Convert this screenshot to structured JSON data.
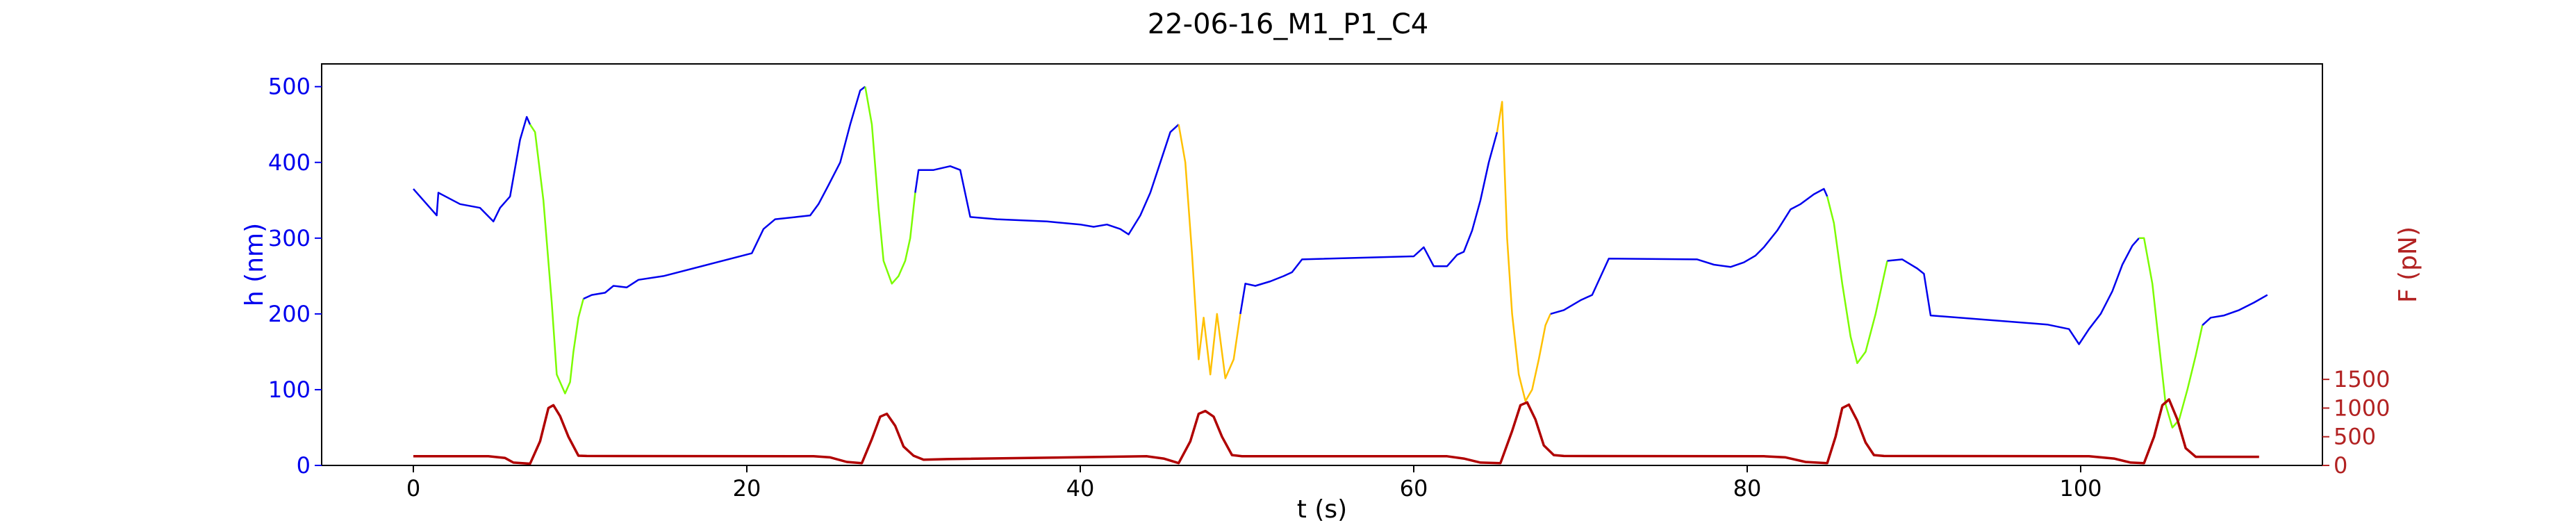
{
  "chart_data": {
    "type": "line",
    "title": "22-06-16_M1_P1_C4",
    "xlabel": "t (s)",
    "ylabel_left": "h (nm)",
    "ylabel_right": "F (pN)",
    "xlim": [
      -5.5,
      114.5
    ],
    "ylim_left": [
      0,
      530
    ],
    "ylim_right": [
      0,
      7000
    ],
    "x_ticks": [
      0,
      20,
      40,
      60,
      80,
      100
    ],
    "y_ticks_left": [
      0,
      100,
      200,
      300,
      400,
      500
    ],
    "y_ticks_right": [
      0,
      500,
      1000,
      1500
    ],
    "grid": false,
    "legend": "none",
    "colors": {
      "height_trace": "#0000ee",
      "ramp_green": "#7cfc00",
      "ramp_yellow": "#ffc000",
      "force_trace": "#b00000",
      "axis_left": "#0000ee",
      "axis_right": "#b22222",
      "frame": "#000000"
    },
    "series": [
      {
        "axis": "left",
        "segments": [
          {
            "color": "blue",
            "points": [
              [
                0,
                365
              ],
              [
                1.4,
                330
              ],
              [
                1.5,
                360
              ],
              [
                2.8,
                345
              ],
              [
                4,
                340
              ],
              [
                4.8,
                322
              ],
              [
                5.2,
                340
              ],
              [
                5.8,
                355
              ],
              [
                6.4,
                430
              ],
              [
                6.8,
                460
              ],
              [
                7.0,
                450
              ]
            ]
          },
          {
            "color": "green",
            "points": [
              [
                7.0,
                450
              ],
              [
                7.3,
                440
              ],
              [
                7.8,
                350
              ],
              [
                8.3,
                215
              ],
              [
                8.6,
                120
              ],
              [
                9.1,
                95
              ],
              [
                9.4,
                110
              ],
              [
                9.6,
                150
              ],
              [
                9.9,
                195
              ],
              [
                10.2,
                220
              ]
            ]
          },
          {
            "color": "blue",
            "points": [
              [
                10.2,
                220
              ],
              [
                10.7,
                225
              ],
              [
                11.5,
                228
              ],
              [
                12.0,
                237
              ],
              [
                12.8,
                235
              ],
              [
                13.5,
                245
              ],
              [
                15,
                250
              ],
              [
                20.3,
                280
              ],
              [
                21,
                312
              ],
              [
                21.7,
                325
              ],
              [
                23,
                328
              ],
              [
                23.8,
                330
              ],
              [
                24.3,
                345
              ],
              [
                24.9,
                370
              ],
              [
                25.6,
                400
              ],
              [
                26.2,
                450
              ],
              [
                26.8,
                495
              ],
              [
                27.1,
                500
              ]
            ]
          },
          {
            "color": "green",
            "points": [
              [
                27.1,
                500
              ],
              [
                27.5,
                450
              ],
              [
                27.9,
                340
              ],
              [
                28.2,
                270
              ],
              [
                28.7,
                240
              ],
              [
                29.1,
                250
              ],
              [
                29.5,
                270
              ],
              [
                29.8,
                300
              ],
              [
                30.1,
                360
              ]
            ]
          },
          {
            "color": "blue",
            "points": [
              [
                30.1,
                360
              ],
              [
                30.3,
                390
              ],
              [
                31.2,
                390
              ],
              [
                32.2,
                395
              ],
              [
                32.8,
                390
              ],
              [
                33.4,
                328
              ],
              [
                35,
                325
              ],
              [
                38,
                322
              ],
              [
                40,
                318
              ],
              [
                40.8,
                315
              ],
              [
                41.6,
                318
              ],
              [
                42.4,
                312
              ],
              [
                42.9,
                305
              ],
              [
                43.6,
                330
              ],
              [
                44.2,
                360
              ],
              [
                44.8,
                400
              ],
              [
                45.4,
                440
              ],
              [
                45.9,
                450
              ]
            ]
          },
          {
            "color": "yellow",
            "points": [
              [
                45.9,
                450
              ],
              [
                46.3,
                400
              ],
              [
                46.7,
                280
              ],
              [
                47.1,
                140
              ],
              [
                47.4,
                195
              ],
              [
                47.8,
                120
              ],
              [
                48.2,
                200
              ],
              [
                48.7,
                115
              ],
              [
                49.2,
                140
              ],
              [
                49.6,
                200
              ]
            ]
          },
          {
            "color": "blue",
            "points": [
              [
                49.6,
                200
              ],
              [
                49.9,
                240
              ],
              [
                50.5,
                237
              ],
              [
                51.4,
                243
              ],
              [
                52.2,
                250
              ],
              [
                52.7,
                255
              ],
              [
                53.3,
                272
              ],
              [
                60,
                276
              ],
              [
                60.6,
                288
              ],
              [
                61.2,
                263
              ],
              [
                62,
                263
              ],
              [
                62.6,
                278
              ],
              [
                63,
                282
              ],
              [
                63.5,
                310
              ],
              [
                64,
                350
              ],
              [
                64.5,
                400
              ],
              [
                65.0,
                440
              ]
            ]
          },
          {
            "color": "yellow",
            "points": [
              [
                65.0,
                440
              ],
              [
                65.3,
                480
              ],
              [
                65.6,
                300
              ],
              [
                65.9,
                200
              ],
              [
                66.3,
                120
              ],
              [
                66.7,
                85
              ],
              [
                67.1,
                100
              ],
              [
                67.5,
                140
              ],
              [
                67.9,
                185
              ],
              [
                68.2,
                200
              ]
            ]
          },
          {
            "color": "blue",
            "points": [
              [
                68.2,
                200
              ],
              [
                69,
                205
              ],
              [
                70,
                218
              ],
              [
                70.7,
                225
              ],
              [
                71.7,
                273
              ],
              [
                77,
                272
              ],
              [
                78,
                265
              ],
              [
                79,
                262
              ],
              [
                79.8,
                268
              ],
              [
                80.5,
                277
              ],
              [
                81,
                288
              ],
              [
                81.8,
                310
              ],
              [
                82.6,
                338
              ],
              [
                83.2,
                345
              ],
              [
                84,
                358
              ],
              [
                84.6,
                365
              ],
              [
                84.8,
                355
              ]
            ]
          },
          {
            "color": "green",
            "points": [
              [
                84.8,
                355
              ],
              [
                85.2,
                320
              ],
              [
                85.7,
                240
              ],
              [
                86.2,
                170
              ],
              [
                86.6,
                135
              ],
              [
                87.1,
                150
              ],
              [
                87.7,
                200
              ],
              [
                88.4,
                270
              ]
            ]
          },
          {
            "color": "blue",
            "points": [
              [
                88.4,
                270
              ],
              [
                89.3,
                272
              ],
              [
                90.2,
                260
              ],
              [
                90.6,
                253
              ],
              [
                91,
                198
              ],
              [
                98,
                186
              ],
              [
                99.3,
                180
              ],
              [
                99.9,
                160
              ],
              [
                100.5,
                180
              ],
              [
                101.2,
                200
              ],
              [
                101.9,
                230
              ],
              [
                102.5,
                265
              ],
              [
                103.1,
                290
              ],
              [
                103.5,
                300
              ]
            ]
          },
          {
            "color": "green",
            "points": [
              [
                103.5,
                300
              ],
              [
                103.8,
                300
              ],
              [
                104.3,
                240
              ],
              [
                104.8,
                140
              ],
              [
                105.1,
                80
              ],
              [
                105.5,
                50
              ],
              [
                105.9,
                60
              ],
              [
                106.4,
                100
              ],
              [
                106.9,
                145
              ],
              [
                107.3,
                185
              ]
            ]
          },
          {
            "color": "blue",
            "points": [
              [
                107.3,
                185
              ],
              [
                107.8,
                195
              ],
              [
                108.6,
                198
              ],
              [
                109.5,
                205
              ],
              [
                110.4,
                215
              ],
              [
                111.2,
                225
              ]
            ]
          }
        ]
      },
      {
        "axis": "right",
        "name": "",
        "color": "force",
        "points": [
          [
            0,
            160
          ],
          [
            4.5,
            160
          ],
          [
            5.5,
            130
          ],
          [
            6,
            50
          ],
          [
            7,
            30
          ],
          [
            7.6,
            420
          ],
          [
            8.1,
            1000
          ],
          [
            8.4,
            1050
          ],
          [
            8.8,
            860
          ],
          [
            9.3,
            500
          ],
          [
            9.9,
            170
          ],
          [
            10.4,
            165
          ],
          [
            24,
            160
          ],
          [
            25,
            140
          ],
          [
            26,
            60
          ],
          [
            26.9,
            40
          ],
          [
            27.5,
            460
          ],
          [
            28.0,
            850
          ],
          [
            28.4,
            900
          ],
          [
            28.9,
            690
          ],
          [
            29.4,
            330
          ],
          [
            30,
            170
          ],
          [
            30.6,
            100
          ],
          [
            32,
            110
          ],
          [
            44,
            160
          ],
          [
            45,
            120
          ],
          [
            45.9,
            40
          ],
          [
            46.6,
            420
          ],
          [
            47.1,
            900
          ],
          [
            47.5,
            950
          ],
          [
            48,
            850
          ],
          [
            48.5,
            500
          ],
          [
            49.1,
            180
          ],
          [
            49.7,
            160
          ],
          [
            62,
            160
          ],
          [
            63,
            120
          ],
          [
            64,
            50
          ],
          [
            65.2,
            40
          ],
          [
            65.9,
            600
          ],
          [
            66.4,
            1050
          ],
          [
            66.8,
            1100
          ],
          [
            67.3,
            800
          ],
          [
            67.8,
            350
          ],
          [
            68.4,
            180
          ],
          [
            69,
            165
          ],
          [
            81,
            160
          ],
          [
            82.3,
            140
          ],
          [
            83.5,
            60
          ],
          [
            84.8,
            40
          ],
          [
            85.3,
            500
          ],
          [
            85.7,
            1000
          ],
          [
            86.1,
            1060
          ],
          [
            86.6,
            780
          ],
          [
            87.1,
            400
          ],
          [
            87.6,
            180
          ],
          [
            88.2,
            165
          ],
          [
            100.5,
            160
          ],
          [
            102,
            120
          ],
          [
            103,
            50
          ],
          [
            103.8,
            40
          ],
          [
            104.4,
            500
          ],
          [
            104.9,
            1050
          ],
          [
            105.3,
            1150
          ],
          [
            105.8,
            800
          ],
          [
            106.3,
            300
          ],
          [
            106.9,
            150
          ],
          [
            110.7,
            150
          ]
        ]
      }
    ]
  }
}
